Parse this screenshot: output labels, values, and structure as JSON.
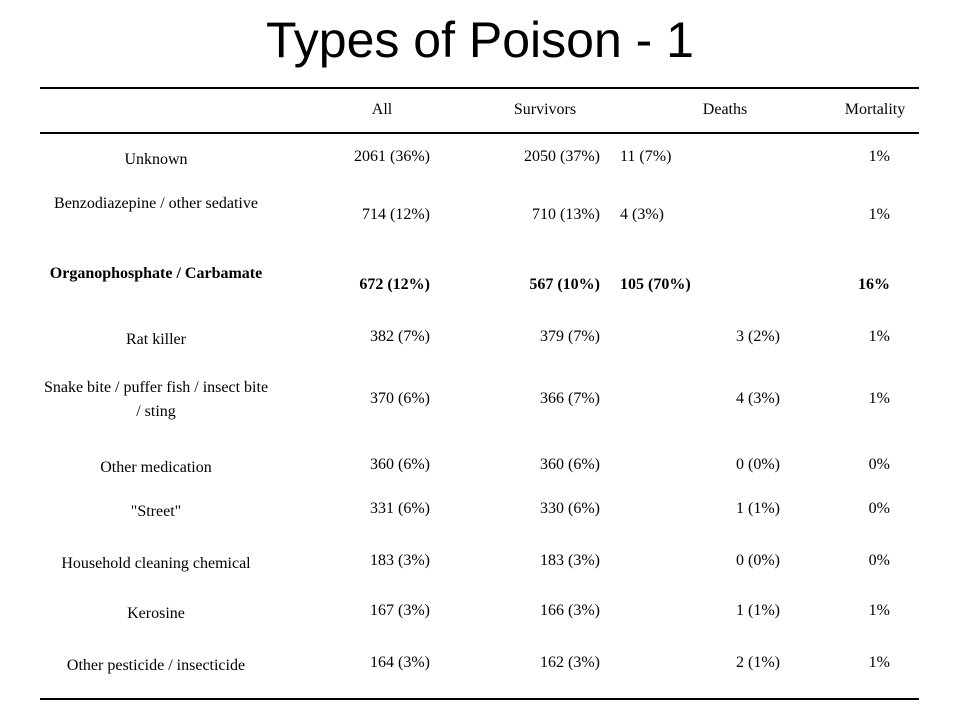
{
  "slide": {
    "title": "Types of Poison - 1"
  },
  "table": {
    "headers": {
      "all": "All",
      "survivors": "Survivors",
      "deaths": "Deaths",
      "mortality": "Mortality"
    },
    "rows": [
      {
        "name": "Unknown",
        "all": "2061 (36%)",
        "survivors": "2050 (37%)",
        "deaths": "11  (7%)",
        "mortality": "1%"
      },
      {
        "name": "Benzodiazepine / other sedative",
        "all": "714 (12%)",
        "survivors": "710 (13%)",
        "deaths": "4 (3%)",
        "mortality": "1%"
      },
      {
        "name": "Organophosphate / Carbamate",
        "all": "672 (12%)",
        "survivors": "567 (10%)",
        "deaths": "105 (70%)",
        "mortality": "16%"
      },
      {
        "name": "Rat killer",
        "all": "382 (7%)",
        "survivors": "379 (7%)",
        "deaths": "3 (2%)",
        "mortality": "1%"
      },
      {
        "name": "Snake bite / puffer fish / insect bite / sting",
        "all": "370 (6%)",
        "survivors": "366 (7%)",
        "deaths": "4 (3%)",
        "mortality": "1%"
      },
      {
        "name": "Other medication",
        "all": "360 (6%)",
        "survivors": "360 (6%)",
        "deaths": "0 (0%)",
        "mortality": "0%"
      },
      {
        "name": "\"Street\"",
        "all": "331 (6%)",
        "survivors": "330 (6%)",
        "deaths": "1 (1%)",
        "mortality": "0%"
      },
      {
        "name": "Household cleaning chemical",
        "all": "183 (3%)",
        "survivors": "183 (3%)",
        "deaths": "0 (0%)",
        "mortality": "0%"
      },
      {
        "name": "Kerosine",
        "all": "167 (3%)",
        "survivors": "166 (3%)",
        "deaths": "1 (1%)",
        "mortality": "1%"
      },
      {
        "name": "Other pesticide / insecticide",
        "all": "164 (3%)",
        "survivors": "162 (3%)",
        "deaths": "2 (1%)",
        "mortality": "1%"
      }
    ]
  }
}
